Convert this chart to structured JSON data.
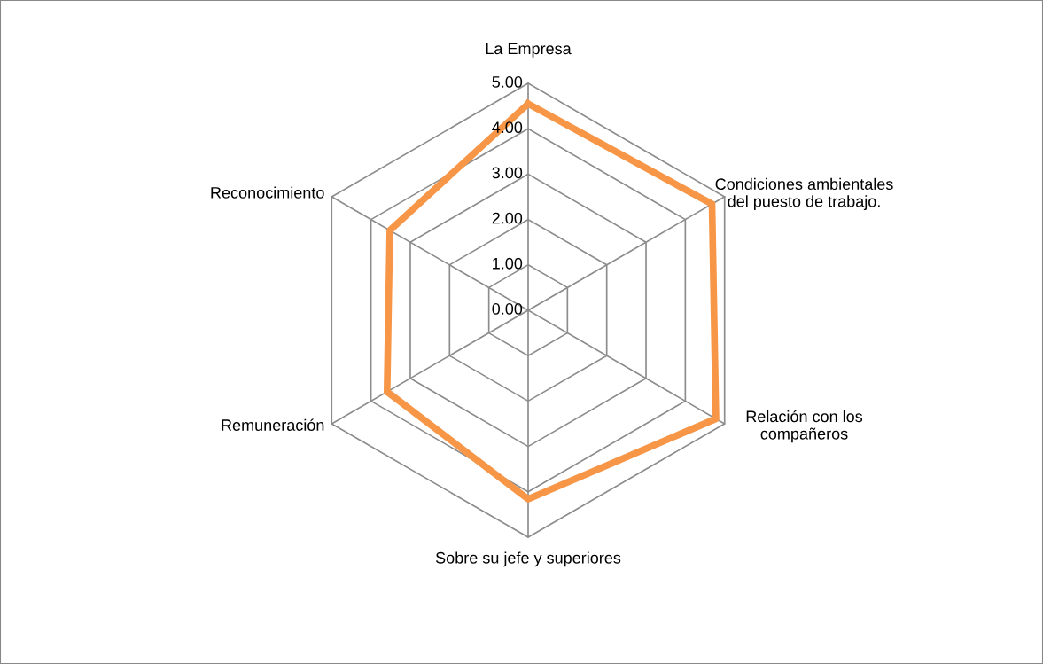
{
  "chart_data": {
    "type": "radar",
    "categories": [
      "La Empresa",
      "Condiciones ambientales\ndel puesto de trabajo.",
      "Relación con los\ncompañeros",
      "Sobre su jefe y superiores",
      "Remuneración",
      "Reconocimiento"
    ],
    "series": [
      {
        "color": "#f79646",
        "values": [
          4.55,
          4.68,
          4.78,
          4.16,
          3.59,
          3.52
        ]
      }
    ],
    "ylim": [
      0,
      5
    ],
    "yticks": [
      {
        "value": 0,
        "label": "0.00"
      },
      {
        "value": 1,
        "label": "1.00"
      },
      {
        "value": 2,
        "label": "2.00"
      },
      {
        "value": 3,
        "label": "3.00"
      },
      {
        "value": 4,
        "label": "4.00"
      },
      {
        "value": 5,
        "label": "5.00"
      }
    ],
    "grid": true
  }
}
